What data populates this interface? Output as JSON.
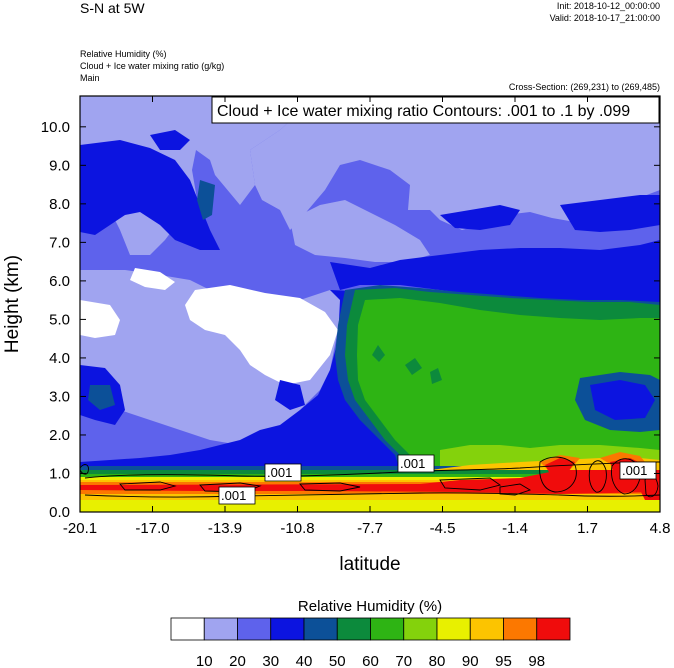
{
  "header": {
    "title": "S-N at 5W",
    "init": "Init: 2018-10-12_00:00:00",
    "valid": "Valid: 2018-10-17_21:00:00",
    "field1": "Relative Humidity   (%)",
    "field2": "Cloud + Ice water mixing ratio   (g/kg)",
    "field3": "Main",
    "cross_section": "Cross-Section: (269,231) to (269,485)"
  },
  "chart_data": {
    "type": "heatmap",
    "title": "Cloud + Ice water mixing ratio Contours: .001 to .1 by .099",
    "xlabel": "latitude",
    "ylabel": "Height (km)",
    "x_ticks": [
      "-20.1",
      "-17.0",
      "-13.9",
      "-10.8",
      "-7.7",
      "-4.5",
      "-1.4",
      "1.7",
      "4.8"
    ],
    "y_ticks": [
      "0.0",
      "1.0",
      "2.0",
      "3.0",
      "4.0",
      "5.0",
      "6.0",
      "7.0",
      "8.0",
      "9.0",
      "10.0"
    ],
    "xlim": [
      -20.1,
      4.8
    ],
    "ylim": [
      0,
      10.8
    ],
    "colorbar": {
      "title": "Relative Humidity  (%)",
      "labels": [
        "10",
        "20",
        "30",
        "40",
        "50",
        "60",
        "70",
        "80",
        "90",
        "95",
        "98"
      ],
      "colors": [
        "#ffffff",
        "#a0a4f0",
        "#5e62ec",
        "#0c14e0",
        "#0c5098",
        "#0c8a3c",
        "#2eb414",
        "#84d20c",
        "#e8f000",
        "#fcc400",
        "#fc7800",
        "#f00c0c"
      ]
    },
    "contour_labels": [
      ".001",
      ".001",
      ".001",
      ".001"
    ]
  }
}
